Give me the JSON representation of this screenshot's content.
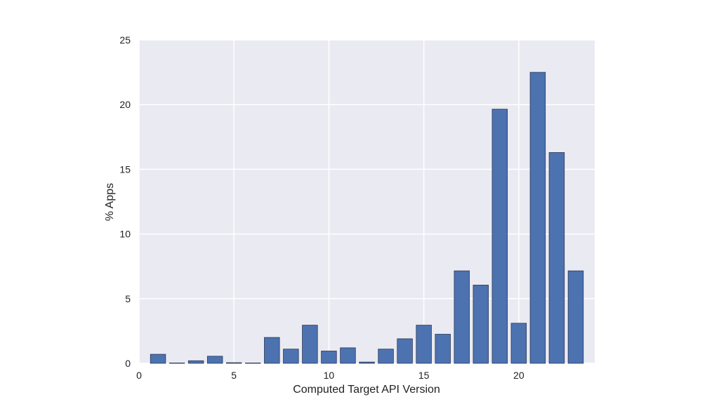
{
  "chart_data": {
    "type": "bar",
    "title": "",
    "xlabel": "Computed Target API Version",
    "ylabel": "% Apps",
    "xlim": [
      0,
      24
    ],
    "ylim": [
      0,
      25
    ],
    "xticks": [
      0,
      5,
      10,
      15,
      20
    ],
    "yticks": [
      0,
      5,
      10,
      15,
      20,
      25
    ],
    "grid": true,
    "colors": {
      "bar": "#4c72b0",
      "bar_edge": "#2b3a55",
      "plot_bg": "#eaeaf2",
      "grid": "#ffffff"
    },
    "x": [
      1,
      2,
      3,
      4,
      5,
      6,
      7,
      8,
      9,
      10,
      11,
      12,
      13,
      14,
      15,
      16,
      17,
      18,
      19,
      20,
      21,
      22,
      23
    ],
    "values": [
      0.7,
      0.03,
      0.2,
      0.55,
      0.05,
      0.03,
      2.0,
      1.1,
      2.95,
      0.95,
      1.2,
      0.1,
      1.1,
      1.9,
      2.95,
      2.25,
      7.15,
      6.05,
      19.65,
      3.1,
      22.5,
      16.3,
      7.15
    ]
  }
}
